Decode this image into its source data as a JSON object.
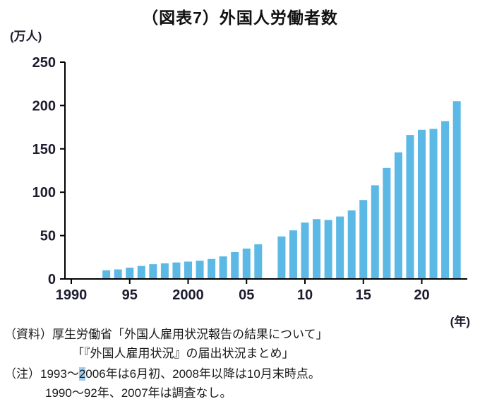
{
  "chart_data": {
    "type": "bar",
    "title": "（図表7）外国人労働者数",
    "y_unit_label": "(万人)",
    "x_unit_label": "(年)",
    "ylim": [
      0,
      250
    ],
    "yticks": [
      0,
      50,
      100,
      150,
      200,
      250
    ],
    "x_range": [
      1990,
      2023
    ],
    "xticks": [
      {
        "year": 1990,
        "label": "1990"
      },
      {
        "year": 1995,
        "label": "95"
      },
      {
        "year": 2000,
        "label": "2000"
      },
      {
        "year": 2005,
        "label": "05"
      },
      {
        "year": 2010,
        "label": "10"
      },
      {
        "year": 2015,
        "label": "15"
      },
      {
        "year": 2020,
        "label": "20"
      }
    ],
    "bar_color": "#5CB8E4",
    "series_name": "外国人労働者数",
    "points": [
      {
        "year": 1993,
        "value": 10
      },
      {
        "year": 1994,
        "value": 11
      },
      {
        "year": 1995,
        "value": 13
      },
      {
        "year": 1996,
        "value": 15
      },
      {
        "year": 1997,
        "value": 17
      },
      {
        "year": 1998,
        "value": 18
      },
      {
        "year": 1999,
        "value": 19
      },
      {
        "year": 2000,
        "value": 20
      },
      {
        "year": 2001,
        "value": 21
      },
      {
        "year": 2002,
        "value": 23
      },
      {
        "year": 2003,
        "value": 26
      },
      {
        "year": 2004,
        "value": 31
      },
      {
        "year": 2005,
        "value": 35
      },
      {
        "year": 2006,
        "value": 40
      },
      {
        "year": 2008,
        "value": 49
      },
      {
        "year": 2009,
        "value": 56
      },
      {
        "year": 2010,
        "value": 65
      },
      {
        "year": 2011,
        "value": 69
      },
      {
        "year": 2012,
        "value": 68
      },
      {
        "year": 2013,
        "value": 72
      },
      {
        "year": 2014,
        "value": 79
      },
      {
        "year": 2015,
        "value": 91
      },
      {
        "year": 2016,
        "value": 108
      },
      {
        "year": 2017,
        "value": 128
      },
      {
        "year": 2018,
        "value": 146
      },
      {
        "year": 2019,
        "value": 166
      },
      {
        "year": 2020,
        "value": 172
      },
      {
        "year": 2021,
        "value": 173
      },
      {
        "year": 2022,
        "value": 182
      },
      {
        "year": 2023,
        "value": 205
      }
    ],
    "missing_years": [
      1990,
      1991,
      1992,
      2007
    ]
  },
  "source": {
    "line1": "（資料）厚生労働省「外国人雇用状況報告の結果について」",
    "line2": "「『外国人雇用状況』の届出状況まとめ」"
  },
  "note": {
    "label": "（注）",
    "line1_pre": "1993〜",
    "line1_highlight": "2",
    "line1_post": "006年は6月初、2008年以降は10月末時点。",
    "line2": "1990〜92年、2007年は調査なし。"
  }
}
